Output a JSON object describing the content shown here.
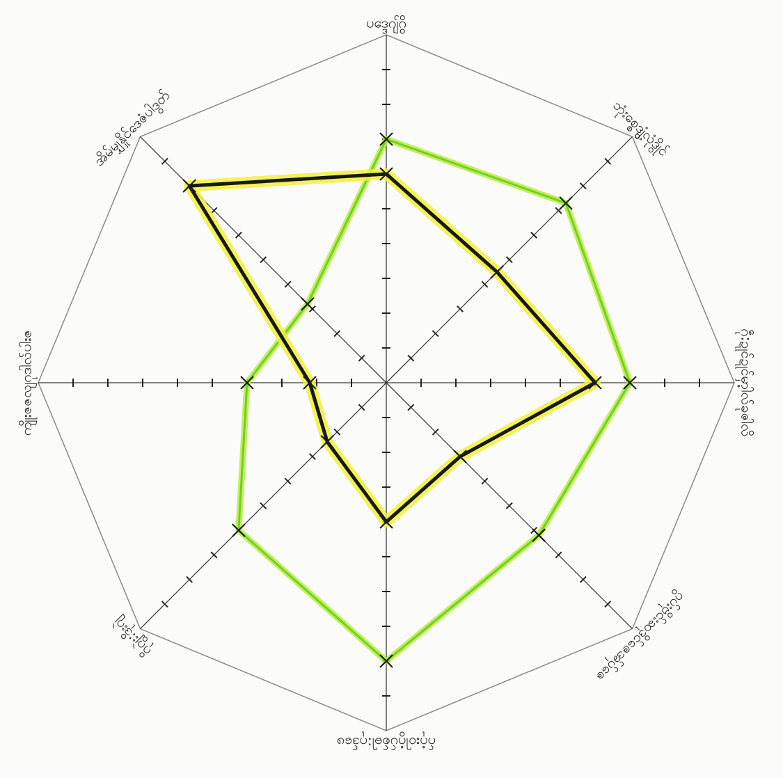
{
  "chart_data": {
    "type": "radar",
    "axes": [
      {
        "label": "ပဒ္ဒေဂျ်ဂွိ"
      },
      {
        "label": "ဘုံးစ္စွေ့ဒျံလုံဒွိုင်"
      },
      {
        "label": "ဂဵု:ဍုင်ဍုင်မှာ့ါလ်ခုဇါလိ"
      },
      {
        "label": "ဂွပ်းဗိုင်းဆဒိုင်ဇေအ်ပ်ှဇေ"
      },
      {
        "label": "ဂ်ဂုံးဝါဂွံပ်စ်ဓါ:ဂုဒ်ဖေ"
      },
      {
        "label": "ဂိုဂျွဲး:ဒိုးဂျဲ"
      },
      {
        "label": "ကျိုးဇဇလျဂုဒါလ်ပါးဇ"
      },
      {
        "label": "အိမ်မျှနှိုင်ဒေဇံပါဒွတ်"
      }
    ],
    "scale_max": 10,
    "grid": "octagon with tick marks on each spoke",
    "series": [
      {
        "values": [
          7,
          7.3,
          7,
          6.2,
          8,
          6,
          4,
          3.2
        ],
        "color": "#6fd02a",
        "highlight": "#b8ec3a"
      },
      {
        "values": [
          6,
          4.5,
          6,
          3,
          4,
          2.4,
          2.2,
          8
        ],
        "color": "#161a12",
        "highlight": "#f1f03a"
      }
    ]
  }
}
